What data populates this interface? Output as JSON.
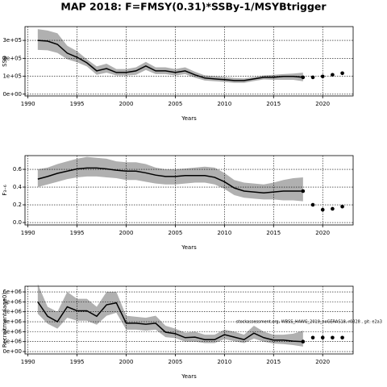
{
  "title": "MAP 2018: F=FMSY(0.31)*SSBy-1/MSYBtrigger",
  "chart_data": [
    {
      "type": "line",
      "ylabel": "SSB",
      "xlabel": "Years",
      "grid": true,
      "color": "#000000",
      "band_color": "#b0b0b0",
      "x": [
        1991,
        1992,
        1993,
        1994,
        1995,
        1996,
        1997,
        1998,
        1999,
        2000,
        2001,
        2002,
        2003,
        2004,
        2005,
        2006,
        2007,
        2008,
        2009,
        2010,
        2011,
        2012,
        2013,
        2014,
        2015,
        2016,
        2017,
        2018,
        2019,
        2020,
        2021,
        2022
      ],
      "values": [
        300000,
        296000,
        278000,
        229000,
        206000,
        175000,
        130000,
        143000,
        121000,
        121000,
        130000,
        157000,
        130000,
        130000,
        121000,
        130000,
        108000,
        90000,
        85000,
        81000,
        76000,
        76000,
        85000,
        94000,
        94000,
        99000,
        99000,
        94000,
        null,
        null,
        null,
        null
      ],
      "upper": [
        363000,
        355000,
        340000,
        270000,
        240000,
        195000,
        155000,
        170000,
        140000,
        140000,
        150000,
        180000,
        150000,
        150000,
        140000,
        150000,
        125000,
        105000,
        100000,
        95000,
        90000,
        88000,
        95000,
        105000,
        108000,
        112000,
        115000,
        120000,
        null,
        null,
        null,
        null
      ],
      "lower": [
        247000,
        245000,
        230000,
        195000,
        178000,
        155000,
        108000,
        120000,
        104000,
        104000,
        108000,
        135000,
        112000,
        112000,
        104000,
        112000,
        92000,
        76000,
        72000,
        68000,
        63000,
        63000,
        73000,
        82000,
        80000,
        80000,
        80000,
        72000,
        null,
        null,
        null,
        null
      ],
      "forecast": [
        null,
        null,
        null,
        null,
        null,
        null,
        null,
        null,
        null,
        null,
        null,
        null,
        null,
        null,
        null,
        null,
        null,
        null,
        null,
        null,
        null,
        null,
        null,
        null,
        null,
        null,
        null,
        94000,
        94000,
        99000,
        108000,
        117000
      ],
      "xlim": [
        1989.7,
        2023.1
      ],
      "xticks": [
        1990,
        1995,
        2000,
        2005,
        2010,
        2015,
        2020
      ],
      "ylim": [
        -10000,
        377000
      ],
      "yticks": [
        {
          "value": 0,
          "label": "0e+00"
        },
        {
          "value": 100000,
          "label": "1e+05"
        },
        {
          "value": 200000,
          "label": "2e+05"
        },
        {
          "value": 300000,
          "label": "3e+05"
        }
      ]
    },
    {
      "type": "line",
      "ylabel": "F₃₋₆",
      "xlabel": "Years",
      "grid": true,
      "color": "#000000",
      "band_color": "#b0b0b0",
      "x": [
        1991,
        1992,
        1993,
        1994,
        1995,
        1996,
        1997,
        1998,
        1999,
        2000,
        2001,
        2002,
        2003,
        2004,
        2005,
        2006,
        2007,
        2008,
        2009,
        2010,
        2011,
        2012,
        2013,
        2014,
        2015,
        2016,
        2017,
        2018,
        2019,
        2020,
        2021,
        2022
      ],
      "values": [
        0.49,
        0.52,
        0.555,
        0.58,
        0.605,
        0.615,
        0.615,
        0.605,
        0.59,
        0.58,
        0.58,
        0.56,
        0.535,
        0.52,
        0.52,
        0.53,
        0.53,
        0.53,
        0.51,
        0.46,
        0.39,
        0.355,
        0.345,
        0.335,
        0.345,
        0.355,
        0.355,
        0.355,
        null,
        null,
        null,
        null
      ],
      "upper": [
        0.6,
        0.62,
        0.66,
        0.69,
        0.72,
        0.74,
        0.73,
        0.72,
        0.69,
        0.68,
        0.68,
        0.66,
        0.62,
        0.6,
        0.6,
        0.61,
        0.62,
        0.63,
        0.62,
        0.56,
        0.48,
        0.45,
        0.44,
        0.43,
        0.45,
        0.48,
        0.5,
        0.51,
        null,
        null,
        null,
        null
      ],
      "lower": [
        0.4,
        0.43,
        0.46,
        0.49,
        0.51,
        0.52,
        0.52,
        0.51,
        0.5,
        0.48,
        0.48,
        0.46,
        0.44,
        0.43,
        0.43,
        0.44,
        0.45,
        0.45,
        0.43,
        0.38,
        0.31,
        0.28,
        0.27,
        0.26,
        0.26,
        0.25,
        0.25,
        0.24,
        null,
        null,
        null,
        null
      ],
      "forecast": [
        null,
        null,
        null,
        null,
        null,
        null,
        null,
        null,
        null,
        null,
        null,
        null,
        null,
        null,
        null,
        null,
        null,
        null,
        null,
        null,
        null,
        null,
        null,
        null,
        null,
        null,
        null,
        0.355,
        0.2,
        0.145,
        0.155,
        0.18
      ],
      "xlim": [
        1989.7,
        2023.1
      ],
      "xticks": [
        1990,
        1995,
        2000,
        2005,
        2010,
        2015,
        2020
      ],
      "ylim": [
        -0.027,
        0.755
      ],
      "yticks": [
        {
          "value": 0,
          "label": "0.0"
        },
        0.2,
        0.4,
        0.6
      ]
    },
    {
      "type": "line",
      "ylabel": "Recruitment (age0)",
      "xlabel": "Years",
      "grid": true,
      "color": "#000000",
      "band_color": "#b0b0b0",
      "annotation": "stockassessment.org, WBSS_HAWG_2019_noGERAS18, r0328 , git: e2a3",
      "x": [
        1991,
        1992,
        1993,
        1994,
        1995,
        1996,
        1997,
        1998,
        1999,
        2000,
        2001,
        2002,
        2003,
        2004,
        2005,
        2006,
        2007,
        2008,
        2009,
        2010,
        2011,
        2012,
        2013,
        2014,
        2015,
        2016,
        2017,
        2018,
        2019,
        2020,
        2021,
        2022
      ],
      "values": [
        5000000,
        3550000,
        3000000,
        4500000,
        4100000,
        4100000,
        3550000,
        4700000,
        4900000,
        2850000,
        2850000,
        2750000,
        2850000,
        1950000,
        1800000,
        1400000,
        1450000,
        1200000,
        1200000,
        1700000,
        1450000,
        1200000,
        1850000,
        1400000,
        1150000,
        1150000,
        1050000,
        1000000,
        null,
        null,
        null,
        null
      ],
      "upper": [
        6800000,
        4500000,
        4000000,
        6000000,
        5300000,
        5300000,
        4500000,
        6000000,
        6000000,
        3600000,
        3500000,
        3400000,
        3600000,
        2600000,
        2300000,
        1900000,
        2000000,
        1700000,
        1700000,
        2200000,
        2000000,
        1700000,
        2600000,
        2000000,
        1700000,
        1700000,
        1800000,
        2100000,
        null,
        null,
        null,
        null
      ],
      "lower": [
        3800000,
        2800000,
        2300000,
        3400000,
        3100000,
        3100000,
        2700000,
        3600000,
        3900000,
        2200000,
        2200000,
        2100000,
        2200000,
        1450000,
        1350000,
        1000000,
        1000000,
        850000,
        850000,
        1250000,
        1050000,
        850000,
        1300000,
        1000000,
        800000,
        750000,
        650000,
        500000,
        null,
        null,
        null,
        null
      ],
      "forecast": [
        null,
        null,
        null,
        null,
        null,
        null,
        null,
        null,
        null,
        null,
        null,
        null,
        null,
        null,
        null,
        null,
        null,
        null,
        null,
        null,
        null,
        null,
        null,
        null,
        null,
        null,
        null,
        1000000,
        1400000,
        1400000,
        1400000,
        1400000
      ],
      "xlim": [
        1989.7,
        2023.1
      ],
      "xticks": [
        1990,
        1995,
        2000,
        2005,
        2010,
        2015,
        2020
      ],
      "ylim": [
        -240000,
        6570000
      ],
      "yticks": [
        {
          "value": 0,
          "label": "0e+00"
        },
        {
          "value": 1000000,
          "label": "1e+06"
        },
        {
          "value": 2000000,
          "label": "2e+06"
        },
        {
          "value": 3000000,
          "label": "3e+06"
        },
        {
          "value": 4000000,
          "label": "4e+06"
        },
        {
          "value": 5000000,
          "label": "5e+06"
        },
        {
          "value": 6000000,
          "label": "6e+06"
        }
      ]
    }
  ]
}
